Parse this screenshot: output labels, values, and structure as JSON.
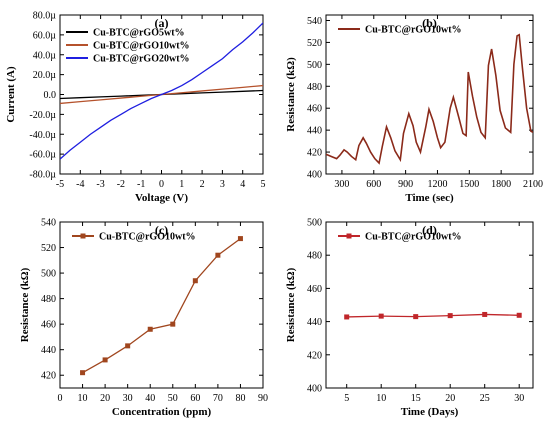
{
  "chart_data": [
    {
      "panel": "(a)",
      "type": "line",
      "xlabel": "Voltage (V)",
      "ylabel": "Current (A)",
      "xlim": [
        -5,
        5
      ],
      "ylim": [
        -80,
        80
      ],
      "y_unit": "µ",
      "xticks": [
        -5,
        -4,
        -3,
        -2,
        -1,
        0,
        1,
        2,
        3,
        4,
        5
      ],
      "yticks": [
        -80,
        -60,
        -40,
        -20,
        0,
        20,
        40,
        60,
        80
      ],
      "ytick_labels": [
        "-80.0µ",
        "-60.0µ",
        "-40.0µ",
        "-20.0µ",
        "0.0",
        "20.0µ",
        "40.0µ",
        "60.0µ",
        "80.0µ"
      ],
      "legend_position": "top-left",
      "series": [
        {
          "name": "Cu-BTC@rGO5wt%",
          "color": "#000000",
          "x": [
            -5,
            -4,
            -3,
            -2,
            -1,
            0,
            1,
            2,
            3,
            4,
            5
          ],
          "y": [
            -4,
            -3.2,
            -2.4,
            -1.6,
            -0.8,
            0,
            0.8,
            1.6,
            2.4,
            3.2,
            4
          ]
        },
        {
          "name": "Cu-BTC@rGO10wt%",
          "color": "#b5522c",
          "x": [
            -5,
            -4,
            -3,
            -2,
            -1,
            0,
            1,
            2,
            3,
            4,
            5
          ],
          "y": [
            -9,
            -7.2,
            -5.4,
            -3.6,
            -1.8,
            0,
            1.8,
            3.6,
            5.4,
            7.2,
            9
          ]
        },
        {
          "name": "Cu-BTC@rGO20wt%",
          "color": "#1f1fe0",
          "x": [
            -5,
            -4.5,
            -4,
            -3.5,
            -3,
            -2.5,
            -2,
            -1.5,
            -1,
            -0.5,
            0,
            0.5,
            1,
            1.5,
            2,
            2.5,
            3,
            3.5,
            4,
            4.5,
            5
          ],
          "y": [
            -65,
            -56,
            -48,
            -40,
            -33,
            -26,
            -20,
            -14,
            -9,
            -4,
            0,
            4,
            9,
            15,
            22,
            29,
            36,
            45,
            53,
            62,
            72
          ]
        }
      ]
    },
    {
      "panel": "(b)",
      "type": "line",
      "xlabel": "Time (sec)",
      "ylabel": "Resistance (kΩ)",
      "xlim": [
        150,
        2100
      ],
      "ylim": [
        400,
        545
      ],
      "xticks": [
        300,
        600,
        900,
        1200,
        1500,
        1800,
        2100
      ],
      "yticks": [
        400,
        420,
        440,
        460,
        480,
        500,
        520,
        540
      ],
      "legend_position": "top-left",
      "series": [
        {
          "name": "Cu-BTC@rGO10wt%",
          "color": "#8b2a1a",
          "x": [
            150,
            200,
            250,
            280,
            320,
            350,
            390,
            430,
            460,
            500,
            530,
            570,
            610,
            650,
            680,
            720,
            760,
            800,
            850,
            880,
            930,
            970,
            1000,
            1040,
            1090,
            1120,
            1160,
            1200,
            1230,
            1270,
            1320,
            1350,
            1400,
            1440,
            1470,
            1490,
            1530,
            1570,
            1610,
            1650,
            1680,
            1710,
            1750,
            1790,
            1840,
            1890,
            1920,
            1950,
            1970,
            2000,
            2040,
            2080,
            2100
          ],
          "y": [
            418,
            416,
            414,
            417,
            422,
            420,
            416,
            413,
            426,
            433,
            428,
            420,
            414,
            410,
            425,
            443,
            433,
            421,
            413,
            437,
            455,
            444,
            429,
            420,
            443,
            459,
            448,
            433,
            424,
            429,
            460,
            470,
            452,
            437,
            435,
            493,
            471,
            452,
            438,
            433,
            499,
            514,
            490,
            458,
            442,
            438,
            500,
            526,
            527,
            497,
            460,
            439,
            438
          ]
        }
      ]
    },
    {
      "panel": "(c)",
      "type": "line",
      "xlabel": "Concentration (ppm)",
      "ylabel": "Resistance (kΩ)",
      "xlim": [
        0,
        90
      ],
      "ylim": [
        410,
        540
      ],
      "xticks": [
        0,
        10,
        20,
        30,
        40,
        50,
        60,
        70,
        80,
        90
      ],
      "yticks": [
        420,
        440,
        460,
        480,
        500,
        520,
        540
      ],
      "legend_position": "top-left",
      "series": [
        {
          "name": "Cu-BTC@rGO10wt%",
          "color": "#a0461e",
          "x": [
            10,
            20,
            30,
            40,
            50,
            60,
            70,
            80
          ],
          "y": [
            422,
            432,
            443,
            456,
            460,
            494,
            514,
            527
          ]
        }
      ]
    },
    {
      "panel": "(d)",
      "type": "line",
      "xlabel": "Time (Days)",
      "ylabel": "Resistance (kΩ)",
      "xlim": [
        2,
        32
      ],
      "ylim": [
        400,
        500
      ],
      "xticks": [
        5,
        10,
        15,
        20,
        25,
        30
      ],
      "yticks": [
        400,
        420,
        440,
        460,
        480,
        500
      ],
      "legend_position": "top-left",
      "series": [
        {
          "name": "Cu-BTC@rGO10wt%",
          "color": "#c0262a",
          "x": [
            5,
            10,
            15,
            20,
            25,
            30
          ],
          "y": [
            442.8,
            443.3,
            443.0,
            443.6,
            444.3,
            443.8
          ]
        }
      ]
    }
  ]
}
